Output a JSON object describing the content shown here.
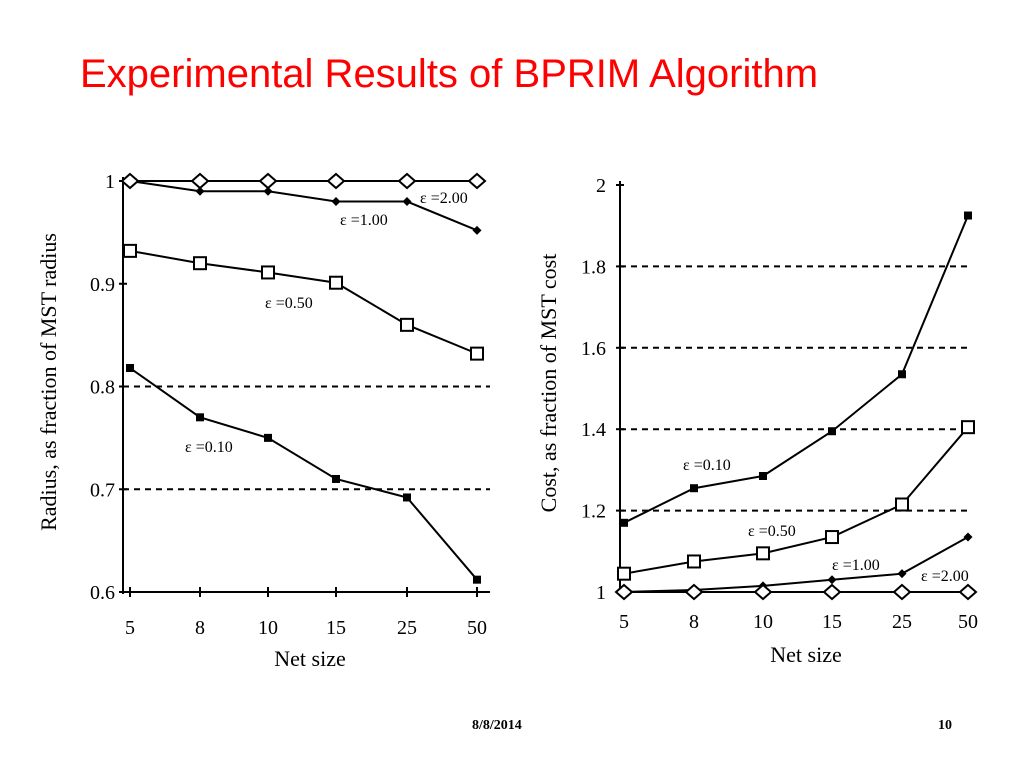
{
  "slide": {
    "title": "Experimental Results of BPRIM Algorithm",
    "date": "8/8/2014",
    "page_number": "10",
    "title_color": "#ff0000"
  },
  "chart_data": [
    {
      "type": "line",
      "ylabel": "Radius, as fraction of MST radius",
      "xlabel": "Net size",
      "categories": [
        "5",
        "8",
        "10",
        "15",
        "25",
        "50"
      ],
      "ylim": [
        0.6,
        1.0
      ],
      "yticks": [
        "1",
        "0.9",
        "0.8",
        "0.7",
        "0.6"
      ],
      "ytick_values": [
        1.0,
        0.9,
        0.8,
        0.7,
        0.6
      ],
      "series": [
        {
          "name": "ε =2.00",
          "marker": "open-diamond",
          "values": [
            1.0,
            1.0,
            1.0,
            1.0,
            1.0,
            1.0
          ]
        },
        {
          "name": "ε =1.00",
          "marker": "filled-diamond",
          "values": [
            1.0,
            0.99,
            0.99,
            0.98,
            0.98,
            0.952
          ]
        },
        {
          "name": "ε =0.50",
          "marker": "open-square",
          "values": [
            0.932,
            0.92,
            0.911,
            0.901,
            0.86,
            0.832
          ]
        },
        {
          "name": "ε =0.10",
          "marker": "filled-square",
          "values": [
            0.818,
            0.77,
            0.75,
            0.71,
            0.692,
            0.612
          ]
        }
      ]
    },
    {
      "type": "line",
      "ylabel": "Cost, as fraction of MST cost",
      "xlabel": "Net size",
      "categories": [
        "5",
        "8",
        "10",
        "15",
        "25",
        "50"
      ],
      "ylim": [
        1.0,
        2.0
      ],
      "yticks": [
        "2",
        "1.8",
        "1.6",
        "1.4",
        "1.2",
        "1"
      ],
      "ytick_values": [
        2.0,
        1.8,
        1.6,
        1.4,
        1.2,
        1.0
      ],
      "series": [
        {
          "name": "ε =0.10",
          "marker": "filled-square",
          "values": [
            1.17,
            1.255,
            1.285,
            1.395,
            1.535,
            1.925
          ]
        },
        {
          "name": "ε =0.50",
          "marker": "open-square",
          "values": [
            1.045,
            1.075,
            1.095,
            1.135,
            1.215,
            1.405
          ]
        },
        {
          "name": "ε =1.00",
          "marker": "filled-diamond",
          "values": [
            1.0,
            1.005,
            1.015,
            1.03,
            1.045,
            1.135
          ]
        },
        {
          "name": "ε =2.00",
          "marker": "open-diamond",
          "values": [
            1.0,
            1.0,
            1.0,
            1.0,
            1.0,
            1.0
          ]
        }
      ]
    }
  ]
}
